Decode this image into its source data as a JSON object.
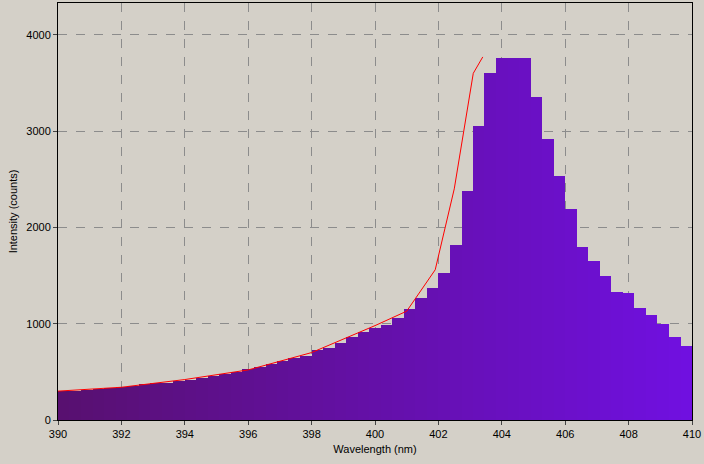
{
  "chart_data": {
    "type": "bar",
    "x_label": "Wavelength (nm)",
    "y_label": "Intensity (counts)",
    "bins": [
      390,
      390.36,
      390.73,
      391.09,
      391.45,
      391.82,
      392.18,
      392.55,
      392.91,
      393.27,
      393.64,
      394,
      394.36,
      394.73,
      395.09,
      395.45,
      395.82,
      396.18,
      396.55,
      396.91,
      397.27,
      397.64,
      398,
      398.36,
      398.73,
      399.09,
      399.45,
      399.82,
      400.18,
      400.55,
      400.91,
      401.27,
      401.64,
      402,
      402.36,
      402.73,
      403.09,
      403.45,
      403.82,
      404.18,
      404.55,
      404.91,
      405.27,
      405.64,
      406,
      406.36,
      406.73,
      407.09,
      407.45,
      407.82,
      408.18,
      408.55,
      408.91,
      409.27,
      409.64,
      410
    ],
    "series": [
      {
        "type": "bar",
        "values": [
          300,
          305,
          315,
          320,
          330,
          340,
          355,
          370,
          380,
          385,
          410,
          420,
          440,
          460,
          480,
          500,
          525,
          550,
          585,
          610,
          640,
          660,
          730,
          750,
          800,
          860,
          910,
          960,
          990,
          1060,
          1150,
          1270,
          1370,
          1530,
          1820,
          2380,
          3050,
          3600,
          3760,
          3760,
          3760,
          3350,
          2920,
          2530,
          2190,
          1800,
          1650,
          1500,
          1330,
          1320,
          1160,
          1090,
          1000,
          860,
          770
        ],
        "colors": [
          "#581070",
          "#581072",
          "#591074",
          "#591076",
          "#5a1078",
          "#5a107a",
          "#5b107c",
          "#5b107f",
          "#5c1081",
          "#5c1083",
          "#5c1085",
          "#5d1087",
          "#5d1089",
          "#5e108b",
          "#5e108d",
          "#5f108f",
          "#5f1091",
          "#601093",
          "#601095",
          "#601097",
          "#611099",
          "#61109c",
          "#62109e",
          "#6210a0",
          "#6310a2",
          "#6310a4",
          "#6410a6",
          "#6410a8",
          "#6410aa",
          "#6510ac",
          "#6510ae",
          "#6610b0",
          "#6610b2",
          "#6710b4",
          "#6710b7",
          "#6810b9",
          "#6810bb",
          "#6810bd",
          "#6910bf",
          "#6910c1",
          "#6a10c3",
          "#6a10c5",
          "#6b10c7",
          "#6b10c9",
          "#6c10cb",
          "#6c10cd",
          "#6c10cf",
          "#6d10d2",
          "#6d10d4",
          "#6e10d6",
          "#6e10d8",
          "#6f10da",
          "#6f10dc",
          "#7010de",
          "#7010e0"
        ]
      },
      {
        "type": "line",
        "color": "#ff0000",
        "x": [
          390,
          392,
          394,
          396,
          398,
          400,
          401,
          401.9,
          402.5,
          403.1,
          403.4
        ],
        "values": [
          300,
          340,
          420,
          520,
          700,
          980,
          1130,
          1560,
          2400,
          3600,
          3770
        ]
      }
    ],
    "xlim": [
      390,
      410
    ],
    "xticks": [
      390,
      392,
      394,
      396,
      398,
      400,
      402,
      404,
      406,
      408,
      410
    ],
    "ylim": [
      0,
      4330
    ],
    "yticks": [
      0,
      1000,
      2000,
      3000,
      4000
    ],
    "grid": true
  }
}
